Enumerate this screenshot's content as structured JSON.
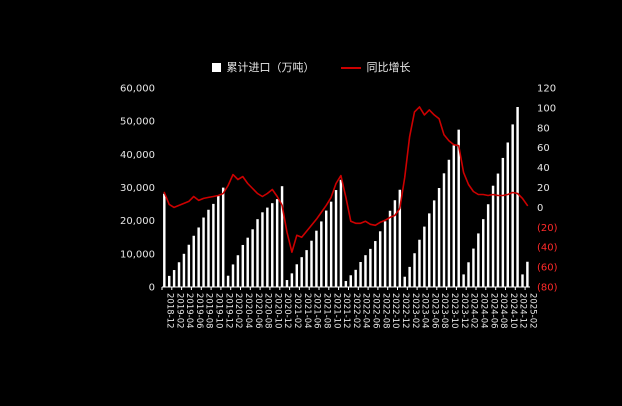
{
  "page": {
    "background": "#000000"
  },
  "chart_data": {
    "type": "bar",
    "subtype": "combo-bar-line",
    "title": "",
    "legend": [
      {
        "label": "累计进口（万吨）",
        "series_type": "bar",
        "color": "#ffffff"
      },
      {
        "label": "同比增长",
        "series_type": "line",
        "color": "#cc0000"
      }
    ],
    "legend_position": "top",
    "grid": false,
    "x_label_interval": 2,
    "x": [
      "2018-12",
      "2019-01",
      "2019-02",
      "2019-03",
      "2019-04",
      "2019-05",
      "2019-06",
      "2019-07",
      "2019-08",
      "2019-09",
      "2019-10",
      "2019-11",
      "2019-12",
      "2020-01",
      "2020-02",
      "2020-03",
      "2020-04",
      "2020-05",
      "2020-06",
      "2020-07",
      "2020-08",
      "2020-09",
      "2020-10",
      "2020-11",
      "2020-12",
      "2021-01",
      "2021-02",
      "2021-03",
      "2021-04",
      "2021-05",
      "2021-06",
      "2021-07",
      "2021-08",
      "2021-09",
      "2021-10",
      "2021-11",
      "2021-12",
      "2022-01",
      "2022-02",
      "2022-03",
      "2022-04",
      "2022-05",
      "2022-06",
      "2022-07",
      "2022-08",
      "2022-09",
      "2022-10",
      "2022-11",
      "2022-12",
      "2023-01",
      "2023-02",
      "2023-03",
      "2023-04",
      "2023-05",
      "2023-06",
      "2023-07",
      "2023-08",
      "2023-09",
      "2023-10",
      "2023-11",
      "2023-12",
      "2024-01",
      "2024-02",
      "2024-03",
      "2024-04",
      "2024-05",
      "2024-06",
      "2024-07",
      "2024-08",
      "2024-09",
      "2024-10",
      "2024-11",
      "2024-12",
      "2025-01",
      "2025-02"
    ],
    "series": [
      {
        "name": "累计进口（万吨）",
        "type": "bar",
        "axis": "left",
        "color": "#ffffff",
        "values": [
          28123,
          3350,
          5113,
          7463,
          10003,
          12739,
          15446,
          17946,
          20946,
          23287,
          25057,
          27462,
          29967,
          3400,
          6806,
          9578,
          12673,
          14871,
          17399,
          20449,
          22519,
          23943,
          25273,
          26483,
          30399,
          2100,
          4113,
          6846,
          8993,
          11117,
          13956,
          16974,
          19769,
          23044,
          25730,
          29232,
          32322,
          1800,
          3539,
          5181,
          7541,
          9595,
          11500,
          13852,
          16798,
          19810,
          22988,
          26169,
          29320,
          3100,
          6064,
          10180,
          14253,
          18211,
          22193,
          26118,
          29846,
          34276,
          38360,
          42714,
          47442,
          3800,
          7452,
          11584,
          16154,
          20453,
          24957,
          30537,
          34206,
          38916,
          43572,
          49024,
          54270,
          3800,
          7612
        ]
      },
      {
        "name": "同比增长",
        "type": "line",
        "axis": "right",
        "color": "#cc0000",
        "values": [
          15,
          3,
          0,
          2,
          4,
          6,
          11,
          7,
          9,
          10,
          11,
          12,
          14,
          22,
          33,
          28,
          31,
          24,
          19,
          14,
          11,
          14,
          18,
          11,
          2,
          -25,
          -45,
          -28,
          -30,
          -24,
          -18,
          -12,
          -5,
          2,
          10,
          24,
          32,
          10,
          -14,
          -16,
          -16,
          -14,
          -17,
          -18,
          -15,
          -13,
          -10,
          -8,
          -1,
          30,
          71,
          96,
          101,
          93,
          98,
          93,
          89,
          73,
          67,
          63,
          62,
          35,
          23,
          16,
          13,
          13,
          12,
          13,
          12,
          12,
          13,
          15,
          14,
          9,
          2
        ]
      }
    ],
    "axes": {
      "left": {
        "min": 0,
        "max": 60000,
        "step": 10000,
        "tick_labels": [
          "0",
          "10,000",
          "20,000",
          "30,000",
          "40,000",
          "50,000",
          "60,000"
        ],
        "color": "#e6e6e6"
      },
      "right": {
        "min": -80,
        "max": 120,
        "step": 20,
        "tick_labels": [
          "(80)",
          "(60)",
          "(40)",
          "(20)",
          "0",
          "20",
          "40",
          "60",
          "80",
          "100",
          "120"
        ],
        "positive_color": "#e6e6e6",
        "negative_color": "#ff2a2a"
      },
      "x_label_color": "#e6e6e6"
    }
  }
}
